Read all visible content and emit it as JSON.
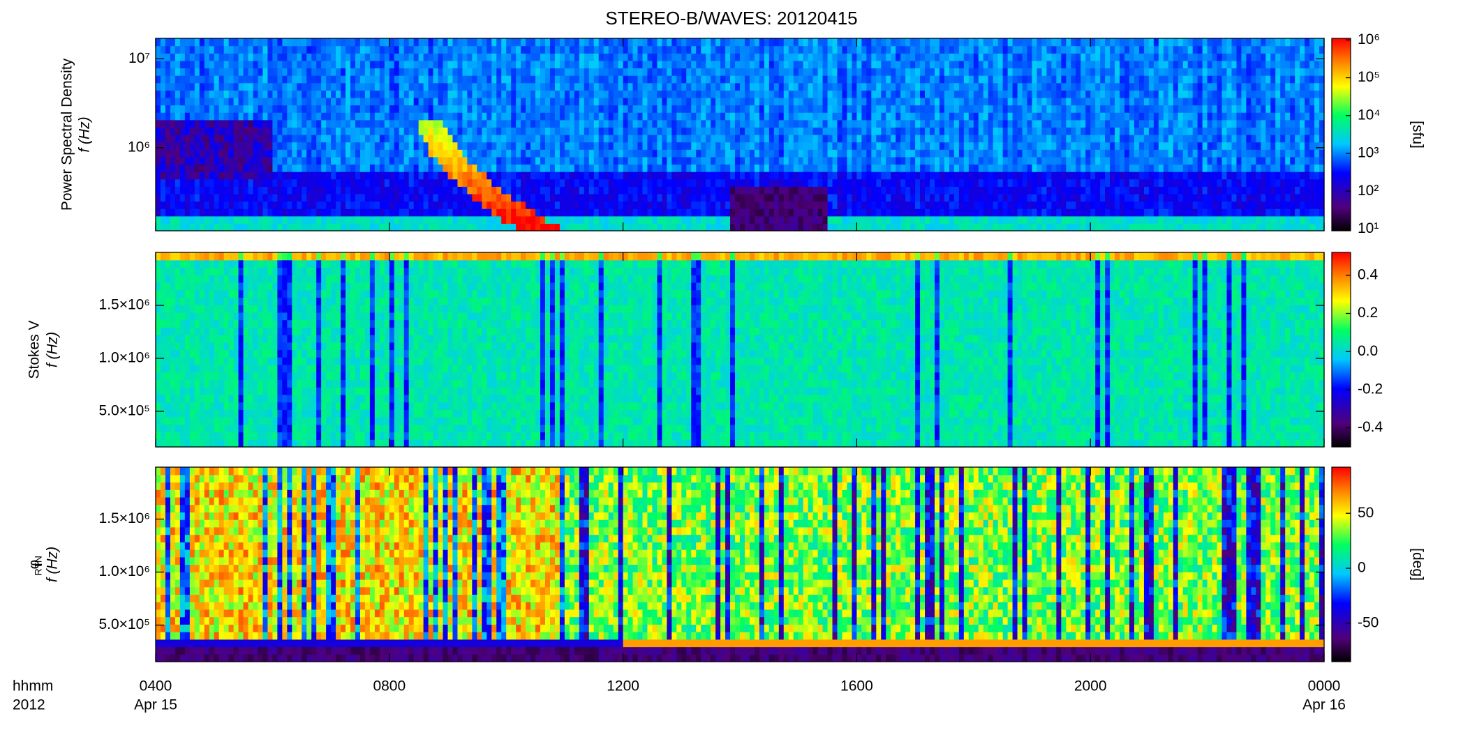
{
  "chart_data": [
    {
      "type": "spectrogram",
      "title": "STEREO-B/WAVES: 20120415",
      "ylabel": "Power Spectral Density",
      "ylabel2": "f (Hz)",
      "xlim": [
        4,
        24
      ],
      "ylog": true,
      "ylim": [
        116000,
        17000000
      ],
      "yticks": [
        {
          "value": 1000000,
          "label": "10⁶"
        },
        {
          "value": 10000000,
          "label": "10⁷"
        }
      ],
      "colorbar": {
        "log": true,
        "lim": [
          9,
          1100000
        ],
        "label": "[sfu]",
        "ticks": [
          {
            "value": 10,
            "label": "10¹"
          },
          {
            "value": 100,
            "label": "10²"
          },
          {
            "value": 1000,
            "label": "10³"
          },
          {
            "value": 10000,
            "label": "10⁴"
          },
          {
            "value": 100000,
            "label": "10⁵"
          },
          {
            "value": 1000000,
            "label": "10⁶"
          }
        ]
      }
    },
    {
      "type": "spectrogram",
      "ylabel": "Stokes V",
      "ylabel2": "f (Hz)",
      "xlim": [
        4,
        24
      ],
      "ylog": false,
      "ylim": [
        164000,
        2000000
      ],
      "yticks": [
        {
          "value": 500000,
          "label": "5.0×10⁵"
        },
        {
          "value": 1000000,
          "label": "1.0×10⁶"
        },
        {
          "value": 1500000,
          "label": "1.5×10⁶"
        }
      ],
      "colorbar": {
        "log": false,
        "lim": [
          -0.5,
          0.52
        ],
        "ticks": [
          -0.4,
          -0.2,
          {
            "value": 0,
            "label": "0.0"
          },
          0.2,
          0.4
        ]
      }
    },
    {
      "type": "spectrogram",
      "ylabel": "φ",
      "ylabel_sub": "RTN",
      "ylabel2": "f (Hz)",
      "xlim": [
        4,
        24
      ],
      "ylog": false,
      "ylim": [
        155000,
        1990000
      ],
      "yticks": [
        {
          "value": 500000,
          "label": "5.0×10⁵"
        },
        {
          "value": 1000000,
          "label": "1.0×10⁶"
        },
        {
          "value": 1500000,
          "label": "1.5×10⁶"
        }
      ],
      "colorbar": {
        "log": false,
        "lim": [
          -85,
          92
        ],
        "label": "[deg]",
        "ticks": [
          -50,
          0,
          50
        ]
      },
      "xlabel": "hhmm",
      "xlabel2": "2012",
      "xticks": [
        {
          "value": 4,
          "label": "0400"
        },
        {
          "value": 8,
          "label": "0800"
        },
        {
          "value": 12,
          "label": "1200"
        },
        {
          "value": 16,
          "label": "1600"
        },
        {
          "value": 20,
          "label": "2000"
        },
        {
          "value": 24,
          "label": "0000"
        }
      ],
      "xdate_labels": [
        {
          "value": 4,
          "label": "Apr 15"
        },
        {
          "value": 24,
          "label": "Apr 16"
        }
      ]
    }
  ]
}
